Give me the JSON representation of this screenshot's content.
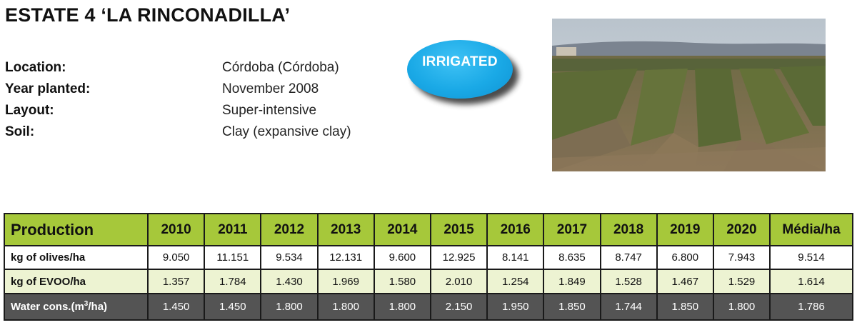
{
  "title": "ESTATE 4 ‘LA RINCONADILLA’",
  "info": [
    {
      "label": "Location:",
      "value": "Córdoba (Córdoba)"
    },
    {
      "label": "Year planted:",
      "value": "November 2008"
    },
    {
      "label": "Layout:",
      "value": "Super-intensive"
    },
    {
      "label": "Soil:",
      "value": "Clay (expansive clay)"
    }
  ],
  "badge": {
    "text": "IRRIGATED",
    "color": "#1aa9e6"
  },
  "table": {
    "header_label": "Production",
    "columns": [
      "2010",
      "2011",
      "2012",
      "2013",
      "2014",
      "2015",
      "2016",
      "2017",
      "2018",
      "2019",
      "2020",
      "Média/ha"
    ],
    "rows": [
      {
        "label": "kg of olives/ha",
        "values": [
          "9.050",
          "11.151",
          "9.534",
          "12.131",
          "9.600",
          "12.925",
          "8.141",
          "8.635",
          "8.747",
          "6.800",
          "7.943",
          "9.514"
        ]
      },
      {
        "label": "kg of EVOO/ha",
        "values": [
          "1.357",
          "1.784",
          "1.430",
          "1.969",
          "1.580",
          "2.010",
          "1.254",
          "1.849",
          "1.528",
          "1.467",
          "1.529",
          "1.614"
        ]
      },
      {
        "label_main": "Water cons.(m",
        "label_sup": "3",
        "label_end": "/ha)",
        "values": [
          "1.450",
          "1.450",
          "1.800",
          "1.800",
          "1.800",
          "2.150",
          "1.950",
          "1.850",
          "1.744",
          "1.850",
          "1.800",
          "1.786"
        ]
      }
    ]
  },
  "colors": {
    "header_green": "#a6c83a",
    "row_light_green": "#edf3d2",
    "row_dark": "#545454"
  }
}
